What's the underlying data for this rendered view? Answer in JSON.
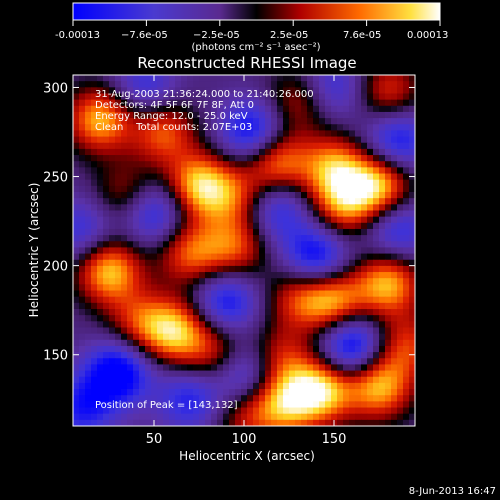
{
  "chart_data": {
    "type": "heatmap",
    "title": "Reconstructed RHESSI Image",
    "xlabel": "Heliocentric X (arcsec)",
    "ylabel": "Heliocentric Y (arcsec)",
    "xlim": [
      5,
      195
    ],
    "ylim": [
      110,
      307
    ],
    "xticks": [
      50,
      100,
      150
    ],
    "yticks": [
      150,
      200,
      250,
      300
    ],
    "colorbar": {
      "ticks": [
        "-0.00013",
        "−7.6e-05",
        "−2.5e-05",
        "2.5e-05",
        "7.6e-05",
        "0.00013"
      ],
      "range": [
        -0.00013,
        0.00013
      ],
      "unit_label": "(photons cm⁻² s⁻¹ asec⁻²)",
      "colors": [
        "#0000ff",
        "#2a2ab0",
        "#5a2aa0",
        "#000000",
        "#cc0000",
        "#ff7700",
        "#ffff88",
        "#ffffff"
      ]
    },
    "annotations": [
      "31-Aug-2003 21:36:24.000 to 21:40:26.000",
      "Detectors: 4F 5F 6F 7F 8F, Att 0",
      "Energy Range: 12.0 - 25.0 keV",
      "Clean    Total counts: 2.07E+03"
    ],
    "peak_label": "Position of Peak = [143,132]",
    "peak": [
      143,
      132
    ],
    "blobs": [
      {
        "x": 143,
        "y": 130,
        "v": 1.0
      },
      {
        "x": 122,
        "y": 122,
        "v": 0.8
      },
      {
        "x": 175,
        "y": 132,
        "v": 0.9
      },
      {
        "x": 118,
        "y": 258,
        "v": 0.85
      },
      {
        "x": 150,
        "y": 255,
        "v": 0.8
      },
      {
        "x": 175,
        "y": 245,
        "v": 0.95
      },
      {
        "x": 155,
        "y": 233,
        "v": 0.7
      },
      {
        "x": 180,
        "y": 190,
        "v": 0.9
      },
      {
        "x": 150,
        "y": 180,
        "v": 0.85
      },
      {
        "x": 130,
        "y": 182,
        "v": 0.55
      },
      {
        "x": 25,
        "y": 197,
        "v": 0.95
      },
      {
        "x": 20,
        "y": 282,
        "v": 0.9
      },
      {
        "x": 55,
        "y": 275,
        "v": 0.7
      },
      {
        "x": 75,
        "y": 245,
        "v": 0.95
      },
      {
        "x": 95,
        "y": 238,
        "v": 0.55
      },
      {
        "x": 70,
        "y": 207,
        "v": 0.7
      },
      {
        "x": 95,
        "y": 210,
        "v": 0.65
      },
      {
        "x": 62,
        "y": 163,
        "v": 0.9
      },
      {
        "x": 85,
        "y": 150,
        "v": 0.6
      },
      {
        "x": 42,
        "y": 168,
        "v": 0.55
      },
      {
        "x": 120,
        "y": 148,
        "v": 0.55
      },
      {
        "x": 180,
        "y": 298,
        "v": 0.6
      },
      {
        "x": 130,
        "y": 292,
        "v": 0.5
      },
      {
        "x": 190,
        "y": 155,
        "v": 0.6
      },
      {
        "x": 35,
        "y": 240,
        "v": 0.5
      },
      {
        "x": 100,
        "y": 115,
        "v": 0.45
      },
      {
        "x": 30,
        "y": 140,
        "v": -0.9
      },
      {
        "x": 50,
        "y": 230,
        "v": -0.7
      },
      {
        "x": 105,
        "y": 275,
        "v": -0.8
      },
      {
        "x": 140,
        "y": 205,
        "v": -0.8
      },
      {
        "x": 90,
        "y": 180,
        "v": -0.7
      },
      {
        "x": 160,
        "y": 155,
        "v": -0.9
      },
      {
        "x": 70,
        "y": 125,
        "v": -0.6
      },
      {
        "x": 185,
        "y": 270,
        "v": -0.7
      },
      {
        "x": 118,
        "y": 232,
        "v": -0.6
      },
      {
        "x": 45,
        "y": 300,
        "v": -0.5
      },
      {
        "x": 100,
        "y": 140,
        "v": -0.7
      },
      {
        "x": 10,
        "y": 220,
        "v": -0.5
      },
      {
        "x": 150,
        "y": 300,
        "v": -0.5
      },
      {
        "x": 185,
        "y": 220,
        "v": -0.6
      },
      {
        "x": 10,
        "y": 120,
        "v": -0.6
      }
    ]
  },
  "footer": {
    "date": "8-Jun-2013 16:47"
  }
}
